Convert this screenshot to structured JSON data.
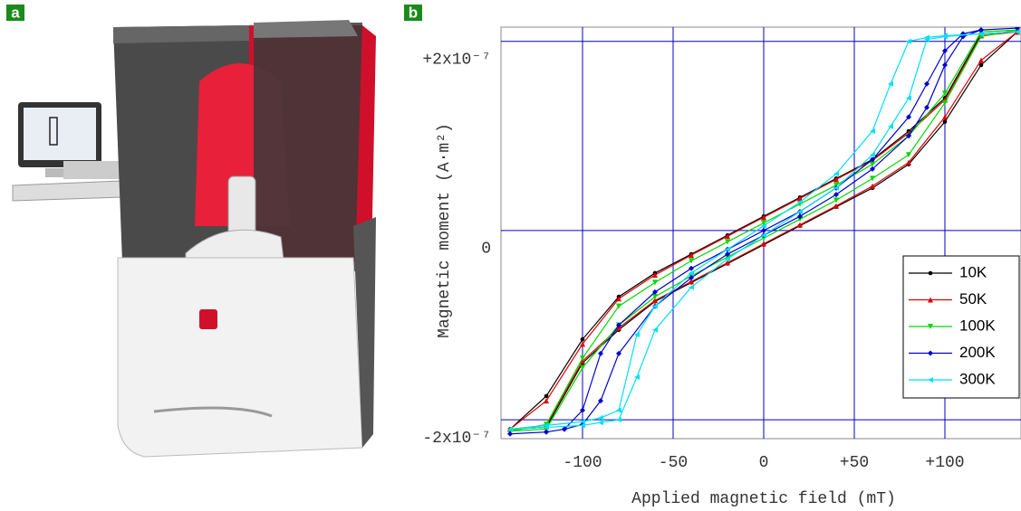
{
  "panel_labels": [
    "a",
    "b"
  ],
  "chart_data": {
    "type": "line",
    "x_label": "Applied magnetic field (mT)",
    "y_label": "Magnetic moment (A·m²)",
    "xlim": [
      -145,
      142
    ],
    "ylim": [
      -2.2e-07,
      2.15e-07
    ],
    "xticks": [
      -100,
      -50,
      0,
      {
        "value": 50,
        "label": "+50"
      },
      {
        "value": 100,
        "label": "+100"
      }
    ],
    "yticks": [
      {
        "value": 2e-07,
        "label": "+2x10⁻⁷"
      },
      0,
      {
        "value": -2e-07,
        "label": "-2x10⁻⁷"
      }
    ],
    "grid": true,
    "grid_color": "#0000c8",
    "legend": "right",
    "series": [
      {
        "name": "10K",
        "color": "#000000",
        "marker": "circle",
        "x": [
          140,
          120,
          100,
          80,
          60,
          40,
          20,
          0,
          -20,
          -40,
          -60,
          -80,
          -100,
          -120,
          -140,
          -120,
          -100,
          -80,
          -60,
          -40,
          -20,
          0,
          20,
          40,
          60,
          80,
          100,
          120,
          140
        ],
        "values": [
          2.1e-07,
          2.08e-07,
          1.4e-07,
          1.05e-07,
          7.5e-08,
          5.5e-08,
          3.5e-08,
          1.5e-08,
          -5e-09,
          -2.5e-08,
          -4.5e-08,
          -7e-08,
          -1.15e-07,
          -1.75e-07,
          -2.1e-07,
          -2.08e-07,
          -1.4e-07,
          -1.05e-07,
          -7.5e-08,
          -5.5e-08,
          -3.5e-08,
          -1.5e-08,
          5e-09,
          2.5e-08,
          4.5e-08,
          7e-08,
          1.15e-07,
          1.75e-07,
          2.1e-07
        ]
      },
      {
        "name": "50K",
        "color": "#e00000",
        "marker": "triangle-up",
        "x": [
          140,
          120,
          100,
          80,
          60,
          40,
          20,
          0,
          -20,
          -40,
          -60,
          -80,
          -100,
          -120,
          -140,
          -120,
          -100,
          -80,
          -60,
          -40,
          -20,
          0,
          20,
          40,
          60,
          80,
          100,
          120,
          140
        ],
        "values": [
          2.1e-07,
          2.06e-07,
          1.38e-07,
          1.03e-07,
          7.4e-08,
          5.4e-08,
          3.4e-08,
          1.4e-08,
          -6e-09,
          -2.6e-08,
          -4.7e-08,
          -7.2e-08,
          -1.2e-07,
          -1.8e-07,
          -2.1e-07,
          -2.06e-07,
          -1.38e-07,
          -1.03e-07,
          -7.4e-08,
          -5.4e-08,
          -3.4e-08,
          -1.4e-08,
          6e-09,
          2.6e-08,
          4.7e-08,
          7.2e-08,
          1.2e-07,
          1.8e-07,
          2.1e-07
        ]
      },
      {
        "name": "100K",
        "color": "#00d800",
        "marker": "triangle-down",
        "x": [
          140,
          120,
          100,
          80,
          60,
          40,
          20,
          0,
          -20,
          -40,
          -60,
          -80,
          -100,
          -120,
          -140,
          -120,
          -100,
          -80,
          -60,
          -40,
          -20,
          0,
          20,
          40,
          60,
          80,
          100,
          120,
          140
        ],
        "values": [
          2.12e-07,
          2.1e-07,
          1.45e-07,
          1e-07,
          7e-08,
          4.8e-08,
          2.8e-08,
          8e-09,
          -1.2e-08,
          -3.2e-08,
          -5.5e-08,
          -8e-08,
          -1.35e-07,
          -2.05e-07,
          -2.12e-07,
          -2.1e-07,
          -1.45e-07,
          -1e-07,
          -7e-08,
          -4.8e-08,
          -2.8e-08,
          -8e-09,
          1.2e-08,
          3.2e-08,
          5.5e-08,
          8e-08,
          1.35e-07,
          2.05e-07,
          2.12e-07
        ]
      },
      {
        "name": "200K",
        "color": "#0000d0",
        "marker": "diamond",
        "x": [
          140,
          120,
          110,
          100,
          90,
          80,
          60,
          40,
          20,
          0,
          -20,
          -40,
          -60,
          -80,
          -90,
          -100,
          -110,
          -120,
          -140,
          -120,
          -110,
          -100,
          -90,
          -80,
          -60,
          -40,
          -20,
          0,
          20,
          40,
          60,
          80,
          90,
          100,
          110,
          120,
          140
        ],
        "values": [
          2.14e-07,
          2.12e-07,
          2.08e-07,
          1.9e-07,
          1.55e-07,
          1.2e-07,
          7.5e-08,
          4.5e-08,
          2e-08,
          0.0,
          -2e-08,
          -4e-08,
          -6.5e-08,
          -1e-07,
          -1.3e-07,
          -1.9e-07,
          -2.1e-07,
          -2.13e-07,
          -2.15e-07,
          -2.13e-07,
          -2.1e-07,
          -2.05e-07,
          -1.8e-07,
          -1.3e-07,
          -8e-08,
          -5e-08,
          -2.5e-08,
          -5e-09,
          1.5e-08,
          3.8e-08,
          6.5e-08,
          1e-07,
          1.3e-07,
          1.75e-07,
          2.05e-07,
          2.12e-07,
          2.14e-07
        ]
      },
      {
        "name": "300K",
        "color": "#00e0f0",
        "marker": "triangle-left",
        "x": [
          140,
          120,
          100,
          90,
          80,
          70,
          60,
          40,
          20,
          0,
          -20,
          -40,
          -60,
          -70,
          -80,
          -90,
          -100,
          -120,
          -140,
          -120,
          -100,
          -90,
          -80,
          -70,
          -60,
          -40,
          -20,
          0,
          20,
          40,
          60,
          70,
          80,
          90,
          100,
          120,
          140
        ],
        "values": [
          2.1e-07,
          2.08e-07,
          2.06e-07,
          2.04e-07,
          2e-07,
          1.55e-07,
          1.05e-07,
          6e-08,
          3e-08,
          5e-09,
          -2e-08,
          -4.5e-08,
          -8e-08,
          -1.1e-07,
          -1.9e-07,
          -1.98e-07,
          -2.02e-07,
          -2.06e-07,
          -2.1e-07,
          -2.08e-07,
          -2.06e-07,
          -2.03e-07,
          -2e-07,
          -1.55e-07,
          -1.05e-07,
          -6e-08,
          -3e-08,
          -5e-09,
          2e-08,
          4.5e-08,
          8e-08,
          1.1e-07,
          1.4e-07,
          2.02e-07,
          2.05e-07,
          2.08e-07,
          2.1e-07
        ]
      }
    ]
  }
}
